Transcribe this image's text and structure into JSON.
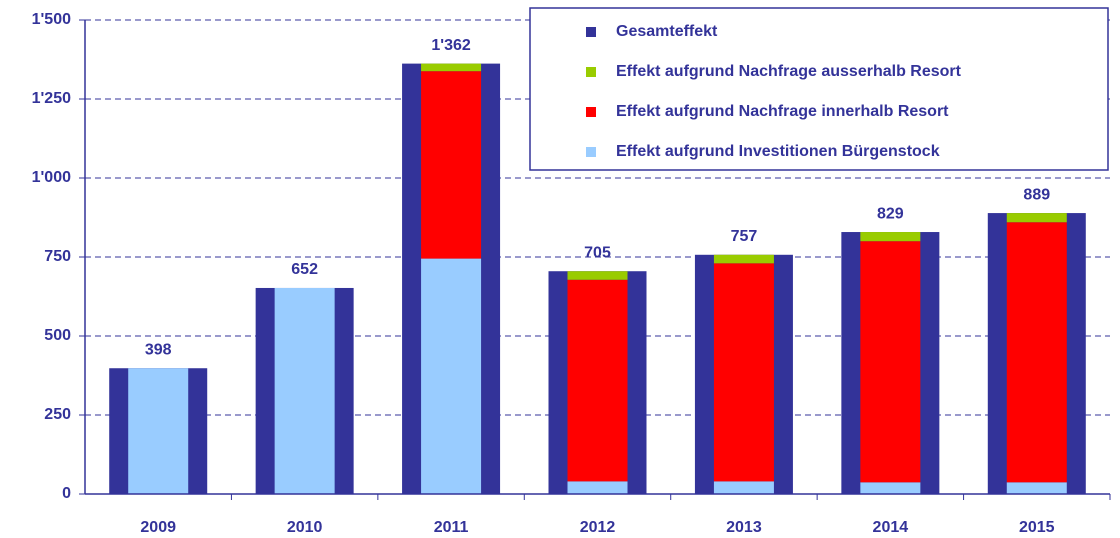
{
  "chart_data": {
    "type": "bar",
    "categories": [
      "2009",
      "2010",
      "2011",
      "2012",
      "2013",
      "2014",
      "2015"
    ],
    "series": [
      {
        "name": "Gesamteffekt",
        "color": "#333399",
        "values": [
          398,
          652,
          1362,
          705,
          757,
          829,
          889
        ],
        "value_labels": [
          "398",
          "652",
          "1'362",
          "705",
          "757",
          "829",
          "889"
        ]
      },
      {
        "name": "Effekt aufgrund Nachfrage ausserhalb Resort",
        "color": "#99cc00",
        "values": [
          0,
          0,
          24,
          27,
          27,
          29,
          29
        ]
      },
      {
        "name": "Effekt aufgrund Nachfrage innerhalb Resort",
        "color": "#ff0000",
        "values": [
          0,
          0,
          593,
          638,
          690,
          763,
          823
        ]
      },
      {
        "name": "Effekt aufgrund Investitionen Bürgenstock",
        "color": "#99ccff",
        "values": [
          398,
          652,
          745,
          40,
          40,
          37,
          37
        ]
      }
    ],
    "ylim": [
      0,
      1500
    ],
    "yticks": [
      0,
      250,
      500,
      750,
      {
        "value": 1000,
        "label": "1'000"
      },
      {
        "value": 1250,
        "label": "1'250"
      },
      {
        "value": 1500,
        "label": "1'500"
      }
    ],
    "grid": true
  }
}
